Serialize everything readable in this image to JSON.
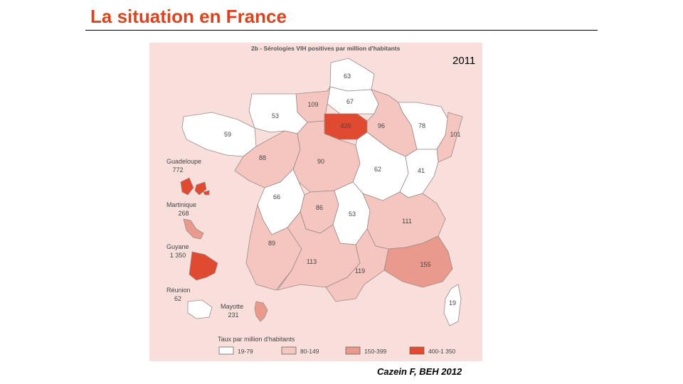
{
  "slide": {
    "title": "La situation en France",
    "year": "2011",
    "citation": "Cazein F, BEH 2012"
  },
  "map": {
    "subtitle": "2b - Sérologies VIH positives par million d'habitants",
    "colors": {
      "c1": "#ffffff",
      "c2": "#f5c6bf",
      "c3": "#e99a8d",
      "c4": "#e04a30",
      "stroke": "#9a8a88",
      "background": "#f8dfdb"
    },
    "regions": [
      {
        "value": "63",
        "class": "c1"
      },
      {
        "value": "67",
        "class": "c1"
      },
      {
        "value": "109",
        "class": "c2"
      },
      {
        "value": "53",
        "class": "c1"
      },
      {
        "value": "59",
        "class": "c1"
      },
      {
        "value": "420",
        "class": "c4"
      },
      {
        "value": "96",
        "class": "c2"
      },
      {
        "value": "78",
        "class": "c1"
      },
      {
        "value": "101",
        "class": "c2"
      },
      {
        "value": "88",
        "class": "c2"
      },
      {
        "value": "90",
        "class": "c2"
      },
      {
        "value": "62",
        "class": "c1"
      },
      {
        "value": "41",
        "class": "c1"
      },
      {
        "value": "66",
        "class": "c1"
      },
      {
        "value": "86",
        "class": "c2"
      },
      {
        "value": "53",
        "class": "c1"
      },
      {
        "value": "111",
        "class": "c2"
      },
      {
        "value": "89",
        "class": "c2"
      },
      {
        "value": "113",
        "class": "c2"
      },
      {
        "value": "119",
        "class": "c2"
      },
      {
        "value": "155",
        "class": "c3"
      },
      {
        "value": "19",
        "class": "c1"
      }
    ],
    "overseas": [
      {
        "name": "Guadeloupe",
        "value": "772",
        "class": "c4"
      },
      {
        "name": "Martinique",
        "value": "268",
        "class": "c3"
      },
      {
        "name": "Guyane",
        "value": "1 350",
        "class": "c4"
      },
      {
        "name": "Réunion",
        "value": "62",
        "class": "c1"
      },
      {
        "name": "Mayotte",
        "value": "231",
        "class": "c3"
      }
    ],
    "legend": {
      "title": "Taux par million d'habitants",
      "items": [
        {
          "label": "19-79",
          "class": "c1"
        },
        {
          "label": "80-149",
          "class": "c2"
        },
        {
          "label": "150-399",
          "class": "c3"
        },
        {
          "label": "400-1 350",
          "class": "c4"
        }
      ]
    }
  }
}
